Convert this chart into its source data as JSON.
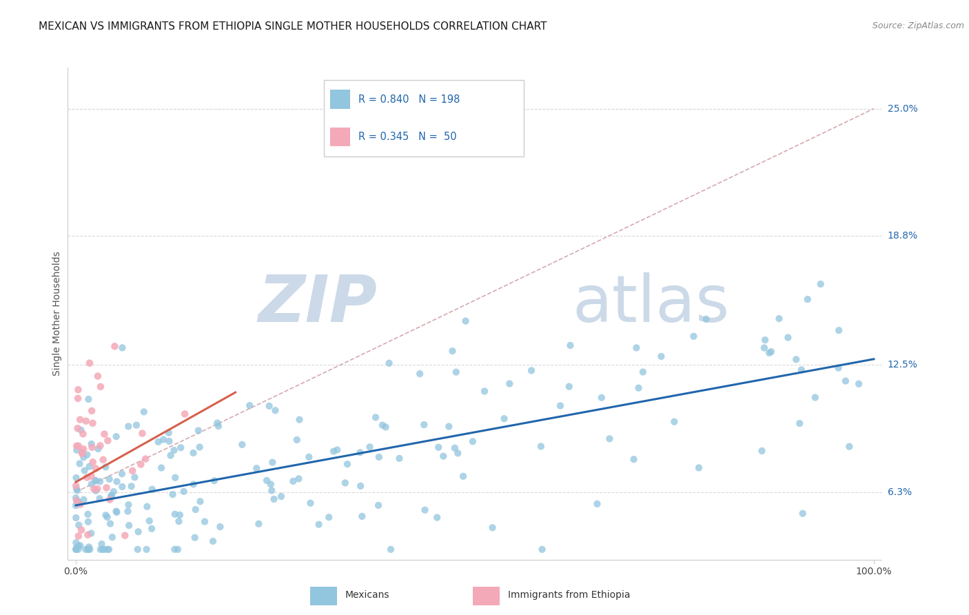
{
  "title": "MEXICAN VS IMMIGRANTS FROM ETHIOPIA SINGLE MOTHER HOUSEHOLDS CORRELATION CHART",
  "source": "Source: ZipAtlas.com",
  "ylabel": "Single Mother Households",
  "ytick_labels": [
    "6.3%",
    "12.5%",
    "18.8%",
    "25.0%"
  ],
  "ytick_values": [
    0.063,
    0.125,
    0.188,
    0.25
  ],
  "xlim": [
    0.0,
    1.0
  ],
  "ylim": [
    0.03,
    0.27
  ],
  "y_top_gridline": 0.25,
  "mexican_R": 0.84,
  "mexican_N": 198,
  "ethiopia_R": 0.345,
  "ethiopia_N": 50,
  "mexican_color": "#92c5de",
  "ethiopia_color": "#f4a9b8",
  "mexican_line_color": "#2166ac",
  "ethiopia_line_color": "#d6604d",
  "diagonal_color": "#d0a0a8",
  "legend_label_mexican": "Mexicans",
  "legend_label_ethiopia": "Immigrants from Ethiopia",
  "background_color": "#ffffff",
  "grid_color": "#d9d9d9",
  "title_fontsize": 11,
  "source_fontsize": 9,
  "ylabel_fontsize": 10,
  "legend_fontsize": 10,
  "tick_fontsize": 10,
  "ytick_color": "#2166ac",
  "watermark_zip": "ZIP",
  "watermark_atlas": "atlas",
  "watermark_color": "#ccd9e8",
  "watermark_fontsize_zip": 68,
  "watermark_fontsize_atlas": 68,
  "seed": 7
}
